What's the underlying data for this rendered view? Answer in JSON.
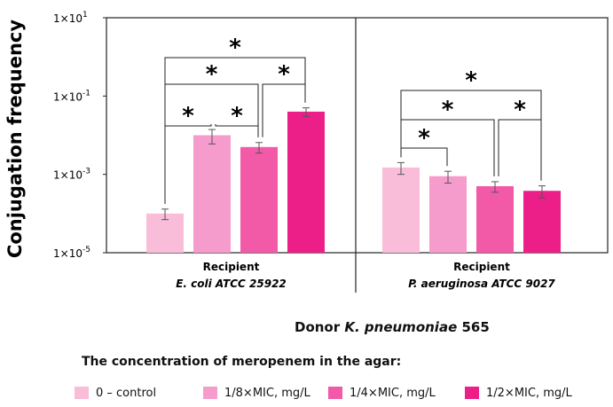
{
  "chart_data": {
    "type": "bar",
    "ylabel": "Conjugation frequency",
    "yscale": "log",
    "ylim": [
      1e-05,
      10
    ],
    "yticks": [
      {
        "value": 10,
        "label": "1×10"
      },
      {
        "value": 0.1,
        "label": "1×10"
      },
      {
        "value": 0.001,
        "label": "1×10"
      },
      {
        "value": 1e-05,
        "label": "1×10"
      }
    ],
    "ytick_exponents": [
      "1",
      "-1",
      "-3",
      "-5"
    ],
    "groups": [
      {
        "title": "Recipient",
        "subtitle": "E. coli ATCC 25922"
      },
      {
        "title": "Recipient",
        "subtitle": "P. aeruginosa ATCC 9027"
      }
    ],
    "series": [
      {
        "name": "0 – control",
        "color": "#f9bdd9",
        "values": [
          0.0001,
          0.0015
        ],
        "errors": [
          3e-05,
          0.0005
        ]
      },
      {
        "name": "1/8×MIC, mg/L",
        "color": "#f59ccc",
        "values": [
          0.01,
          0.0009
        ],
        "errors": [
          0.004,
          0.0003
        ]
      },
      {
        "name": "1/4×MIC, mg/L",
        "color": "#f25aa8",
        "values": [
          0.005,
          0.0005
        ],
        "errors": [
          0.0015,
          0.00015
        ]
      },
      {
        "name": "1/2×MIC, mg/L",
        "color": "#ec1f89",
        "values": [
          0.04,
          0.00038
        ],
        "errors": [
          0.01,
          0.00013
        ]
      }
    ],
    "significance": [
      {
        "group": 0,
        "from": 0,
        "to": 1,
        "label": "*"
      },
      {
        "group": 0,
        "from": 1,
        "to": 2,
        "label": "*"
      },
      {
        "group": 0,
        "from": 0,
        "to": 2,
        "label": "*"
      },
      {
        "group": 0,
        "from": 2,
        "to": 3,
        "label": "*"
      },
      {
        "group": 0,
        "from": 0,
        "to": 3,
        "label": "*"
      },
      {
        "group": 1,
        "from": 0,
        "to": 1,
        "label": "*"
      },
      {
        "group": 1,
        "from": 0,
        "to": 2,
        "label": "*"
      },
      {
        "group": 1,
        "from": 2,
        "to": 3,
        "label": "*"
      },
      {
        "group": 1,
        "from": 0,
        "to": 3,
        "label": "*"
      }
    ]
  },
  "donor": {
    "prefix": "Donor ",
    "species": "K. pneumoniae",
    "strain": " 565"
  },
  "legend": {
    "title": "The concentration of meropenem in the agar:"
  }
}
